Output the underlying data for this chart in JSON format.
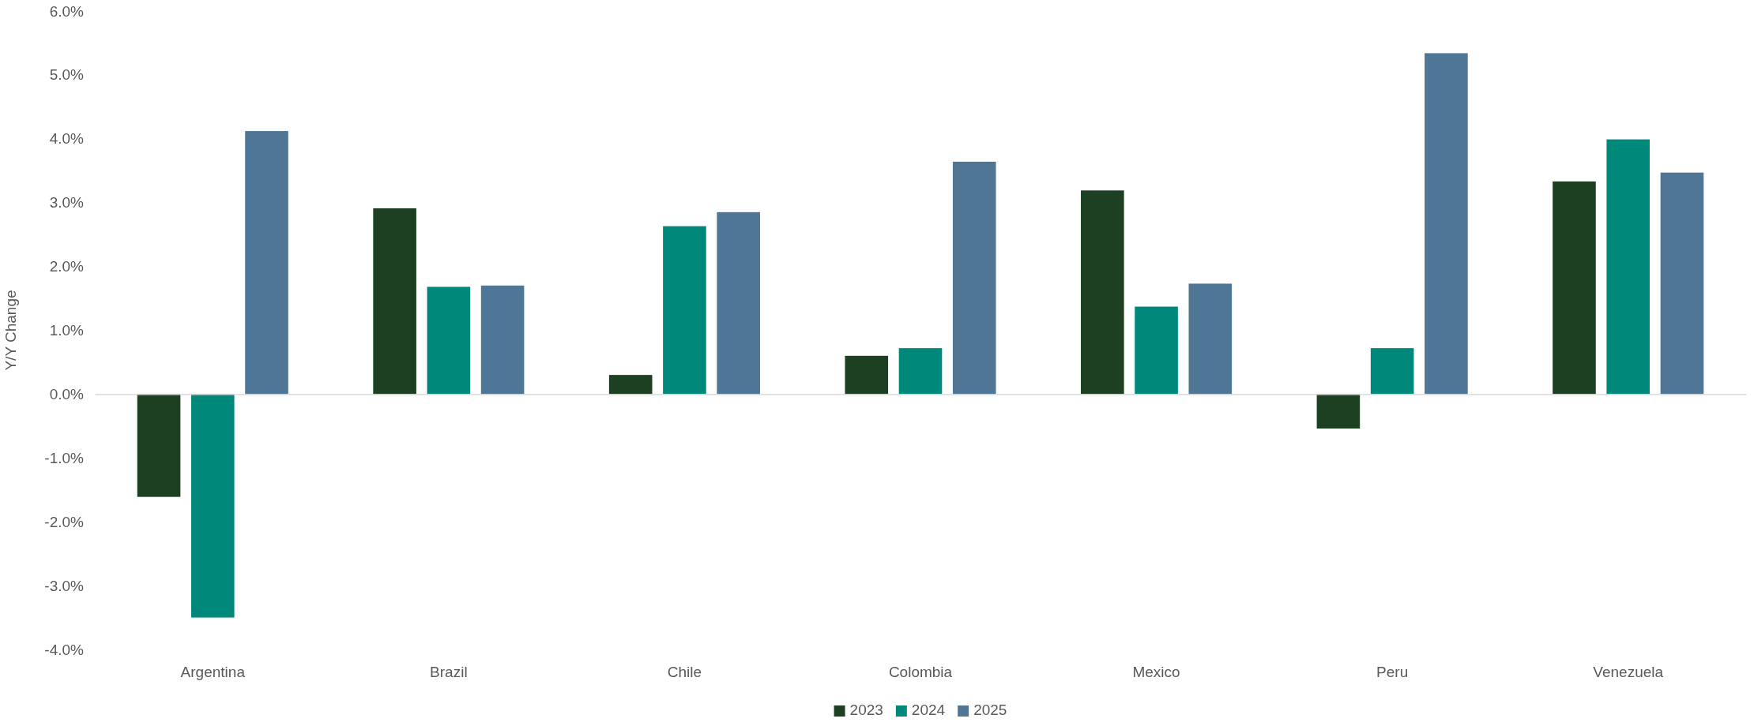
{
  "chart_data": {
    "type": "bar",
    "ylabel": "Y/Y Change",
    "categories": [
      "Argentina",
      "Brazil",
      "Chile",
      "Colombia",
      "Mexico",
      "Peru",
      "Venezuela"
    ],
    "series": [
      {
        "name": "2023",
        "color": "#1e4022",
        "values": [
          -1.61,
          2.91,
          0.3,
          0.6,
          3.19,
          -0.54,
          3.33
        ]
      },
      {
        "name": "2024",
        "color": "#00897b",
        "values": [
          -3.5,
          1.68,
          2.63,
          0.72,
          1.37,
          0.72,
          3.99
        ]
      },
      {
        "name": "2025",
        "color": "#4f7694",
        "values": [
          4.12,
          1.7,
          2.85,
          3.64,
          1.73,
          5.34,
          3.47
        ]
      }
    ],
    "ylim": [
      -4,
      6
    ],
    "yticks": [
      {
        "value": -4,
        "label": "-4.0%"
      },
      {
        "value": -3,
        "label": "-3.0%"
      },
      {
        "value": -2,
        "label": "-2.0%"
      },
      {
        "value": -1,
        "label": "-1.0%"
      },
      {
        "value": 0,
        "label": "0.0%"
      },
      {
        "value": 1,
        "label": "1.0%"
      },
      {
        "value": 2,
        "label": "2.0%"
      },
      {
        "value": 3,
        "label": "3.0%"
      },
      {
        "value": 4,
        "label": "4.0%"
      },
      {
        "value": 5,
        "label": "5.0%"
      },
      {
        "value": 6,
        "label": "6.0%"
      }
    ],
    "legend": "bottom"
  }
}
